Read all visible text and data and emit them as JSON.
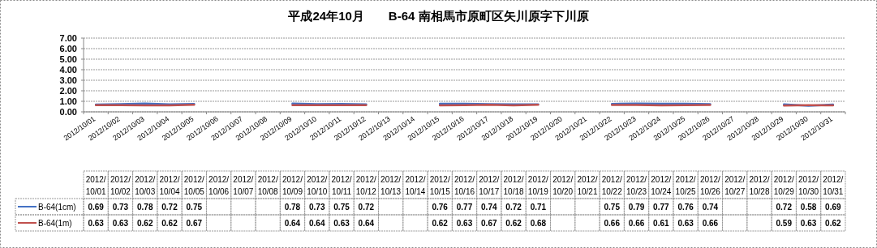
{
  "chart_data": {
    "type": "line",
    "title": "平成24年10月　　B-64 南相馬市原町区矢川原字下川原",
    "categories": [
      "2012/10/01",
      "2012/10/02",
      "2012/10/03",
      "2012/10/04",
      "2012/10/05",
      "2012/10/06",
      "2012/10/07",
      "2012/10/08",
      "2012/10/09",
      "2012/10/10",
      "2012/10/11",
      "2012/10/12",
      "2012/10/13",
      "2012/10/14",
      "2012/10/15",
      "2012/10/16",
      "2012/10/17",
      "2012/10/18",
      "2012/10/19",
      "2012/10/20",
      "2012/10/21",
      "2012/10/22",
      "2012/10/23",
      "2012/10/24",
      "2012/10/25",
      "2012/10/26",
      "2012/10/27",
      "2012/10/28",
      "2012/10/29",
      "2012/10/30",
      "2012/10/31"
    ],
    "series": [
      {
        "name": "B-64(1cm)",
        "color": "#4472c4",
        "values": [
          0.69,
          0.73,
          0.78,
          0.72,
          0.75,
          null,
          null,
          null,
          0.78,
          0.73,
          0.75,
          0.72,
          null,
          null,
          0.76,
          0.77,
          0.74,
          0.72,
          0.71,
          null,
          null,
          0.75,
          0.79,
          0.77,
          0.76,
          0.74,
          null,
          null,
          0.72,
          0.58,
          0.69
        ]
      },
      {
        "name": "B-64(1m)",
        "color": "#c0504d",
        "values": [
          0.63,
          0.63,
          0.62,
          0.62,
          0.67,
          null,
          null,
          null,
          0.64,
          0.64,
          0.63,
          0.64,
          null,
          null,
          0.62,
          0.63,
          0.67,
          0.62,
          0.68,
          null,
          null,
          0.66,
          0.66,
          0.61,
          0.63,
          0.66,
          null,
          null,
          0.59,
          0.63,
          0.62
        ]
      }
    ],
    "ylim": [
      0,
      7
    ],
    "yticks": [
      {
        "value": 0,
        "label": "0.00"
      },
      {
        "value": 1,
        "label": "1.00"
      },
      {
        "value": 2,
        "label": "2.00"
      },
      {
        "value": 3,
        "label": "3.00"
      },
      {
        "value": 4,
        "label": "4.00"
      },
      {
        "value": 5,
        "label": "5.00"
      },
      {
        "value": 6,
        "label": "6.00"
      },
      {
        "value": 7,
        "label": "7.00"
      }
    ],
    "grid": "y",
    "legend": "bottom",
    "data_labels": true,
    "marker": "none",
    "line_style": "solid"
  }
}
